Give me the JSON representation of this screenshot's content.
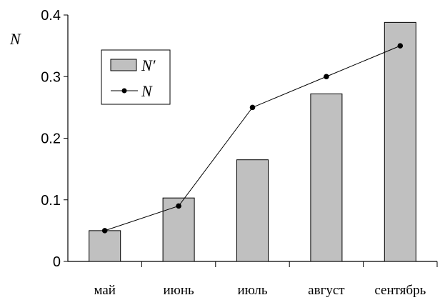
{
  "chart_data": {
    "type": "bar",
    "categories": [
      "май",
      "июнь",
      "июль",
      "август",
      "сентябрь"
    ],
    "ylabel": "N",
    "ylim": [
      0,
      0.4
    ],
    "yticks": [
      0,
      0.1,
      0.2,
      0.3,
      0.4
    ],
    "ytick_labels": [
      "0",
      "0.1",
      "0.2",
      "0.3",
      "0.4"
    ],
    "grid": false,
    "legend_position": "top-left",
    "series": [
      {
        "name": "N′",
        "type": "bar",
        "values": [
          0.05,
          0.103,
          0.165,
          0.272,
          0.388
        ],
        "color": "#c0c0c0"
      },
      {
        "name": "N",
        "type": "line",
        "values": [
          0.05,
          0.09,
          0.25,
          0.3,
          0.35
        ],
        "color": "#000000"
      }
    ]
  }
}
